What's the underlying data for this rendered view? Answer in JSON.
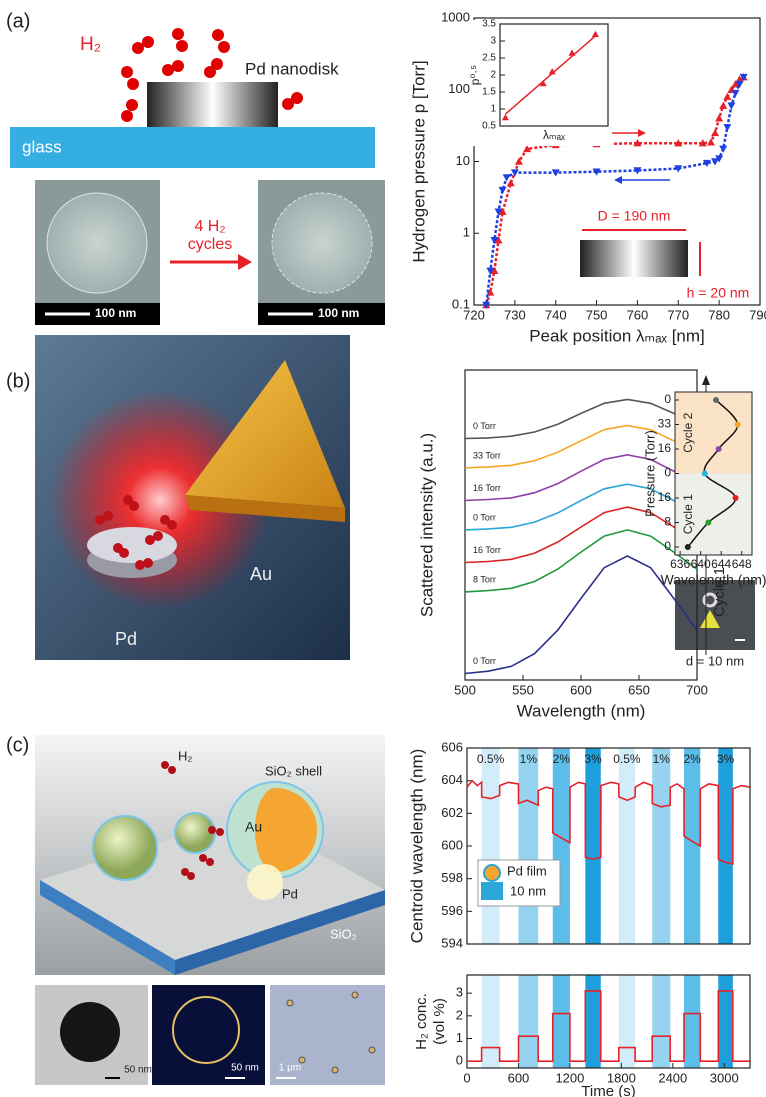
{
  "figure": {
    "panel_labels": [
      "(a)",
      "(b)",
      "(c)"
    ],
    "a": {
      "h2": "H₂",
      "disk": "Pd nanodisk",
      "glass": "glass",
      "scale1": "100 nm",
      "scale2": "100 nm",
      "cycles": [
        "4 H₂",
        "cycles"
      ]
    },
    "b": {
      "pd": "Pd",
      "au": "Au",
      "scale": "d = 10 nm"
    },
    "c": {
      "h2": "H₂",
      "shell": "SiO₂ shell",
      "au": "Au",
      "pd": "Pd",
      "sio2": "SiO₂",
      "s1": "50 nm",
      "s2": "50 nm",
      "s3": "1 μm"
    }
  },
  "chart_data": [
    {
      "type": "line",
      "xlabel": "Peak position λₘₐₓ [nm]",
      "ylabel": "Hydrogen pressure p [Torr]",
      "log_y": true,
      "xlim": [
        720,
        790
      ],
      "xticks": [
        720,
        730,
        740,
        750,
        760,
        770,
        780,
        790
      ],
      "ylim": [
        0.1,
        1000
      ],
      "yticks": [
        0.1,
        1,
        10,
        100,
        1000
      ],
      "annotations": [
        "D = 190 nm",
        "h = 20 nm"
      ],
      "series": [
        {
          "color": "#e8202a",
          "marker": "triangle-up",
          "x": [
            723,
            724,
            725,
            726,
            727,
            729,
            731,
            733,
            740,
            750,
            760,
            770,
            776,
            778,
            779,
            780,
            781,
            782,
            783,
            784,
            785,
            786
          ],
          "values": [
            0.1,
            0.15,
            0.3,
            0.8,
            2,
            5,
            10,
            15,
            17,
            17.5,
            18,
            18,
            18,
            18.5,
            25,
            40,
            60,
            80,
            100,
            120,
            140,
            150
          ]
        },
        {
          "color": "#1f3fe0",
          "marker": "triangle-down",
          "x": [
            786,
            785,
            784,
            783,
            782,
            781,
            780,
            779,
            777,
            770,
            760,
            750,
            740,
            730,
            728,
            727,
            726,
            725,
            724,
            723
          ],
          "values": [
            150,
            120,
            90,
            60,
            30,
            15,
            11,
            10,
            9.5,
            8,
            7.5,
            7.2,
            7,
            7,
            6,
            4,
            2,
            0.8,
            0.3,
            0.1
          ]
        }
      ]
    },
    {
      "type": "scatter",
      "xlabel": "λₘₐₓ",
      "ylabel": "p⁰·⁵",
      "xlim": [
        0,
        6
      ],
      "ylim": [
        0.5,
        3.5
      ],
      "yticks": [
        0.5,
        1,
        1.5,
        2,
        2.5,
        3,
        3.5
      ],
      "color": "#e8202a",
      "x": [
        0.3,
        2.4,
        2.9,
        4.0,
        5.3
      ],
      "values": [
        0.75,
        1.75,
        2.1,
        2.65,
        3.2
      ],
      "fit": {
        "x": [
          0.3,
          5.3
        ],
        "values": [
          0.85,
          3.15
        ]
      }
    },
    {
      "type": "line",
      "xlabel": "Wavelength (nm)",
      "ylabel": "Scattered intensity (a.u.)",
      "xlim": [
        500,
        700
      ],
      "xticks": [
        500,
        550,
        600,
        650,
        700
      ],
      "ylim": [
        0,
        9.5
      ],
      "cycle_labels": [
        "Cycle 2",
        "Cycle 1"
      ],
      "x": [
        500,
        520,
        540,
        560,
        580,
        600,
        620,
        640,
        660,
        680,
        700
      ],
      "series": [
        {
          "name": "0 Torr",
          "color": "#555555",
          "values": [
            7.4,
            7.42,
            7.47,
            7.6,
            7.84,
            8.17,
            8.48,
            8.6,
            8.48,
            8.17,
            7.84
          ]
        },
        {
          "name": "33 Torr",
          "color": "#f5a623",
          "values": [
            6.5,
            6.53,
            6.58,
            6.72,
            6.98,
            7.33,
            7.67,
            7.8,
            7.67,
            7.33,
            6.98
          ]
        },
        {
          "name": "16 Torr",
          "color": "#8e3fa8",
          "values": [
            5.5,
            5.53,
            5.58,
            5.74,
            6.02,
            6.4,
            6.76,
            6.9,
            6.76,
            6.4,
            6.02
          ]
        },
        {
          "name": "0 Torr",
          "color": "#2aa7d6",
          "values": [
            4.6,
            4.63,
            4.68,
            4.84,
            5.12,
            5.5,
            5.86,
            6.0,
            5.86,
            5.5,
            5.12
          ]
        },
        {
          "name": "16 Torr",
          "color": "#e02020",
          "values": [
            3.6,
            3.63,
            3.7,
            3.89,
            4.23,
            4.69,
            5.13,
            5.3,
            5.13,
            4.69,
            4.23
          ]
        },
        {
          "name": "8 Torr",
          "color": "#1f9a3a",
          "values": [
            2.7,
            2.74,
            2.81,
            3.02,
            3.4,
            3.92,
            4.41,
            4.6,
            4.41,
            3.92,
            3.4
          ]
        },
        {
          "name": "0 Torr",
          "color": "#2a2f8a",
          "values": [
            0.2,
            0.27,
            0.42,
            0.81,
            1.53,
            2.5,
            3.44,
            3.8,
            3.44,
            2.5,
            1.53
          ]
        }
      ]
    },
    {
      "type": "dotline",
      "xlabel": "Wavelength (nm)",
      "ylabel": "Pressure (Torr)",
      "xlim": [
        635,
        650
      ],
      "xticks": [
        636,
        640,
        644,
        648
      ],
      "categories": [
        "0",
        "8",
        "16",
        "0",
        "16",
        "33",
        "0"
      ],
      "values": [
        637.5,
        641.5,
        646.8,
        640.8,
        643.5,
        647.2,
        643.0
      ],
      "colors": [
        "#222222",
        "#2ca02c",
        "#e02020",
        "#29b6d6",
        "#8e44ad",
        "#f5a623",
        "#666666"
      ],
      "cycle_labels": [
        "Cycle 1",
        "Cycle 2"
      ]
    },
    {
      "type": "line",
      "ylabel": "Centroid wavelength (nm)",
      "xlim": [
        0,
        3300
      ],
      "ylim": [
        594,
        606
      ],
      "yticks": [
        594,
        596,
        598,
        600,
        602,
        604,
        606
      ],
      "legend": [
        "Pd film",
        "10 nm"
      ],
      "bands": [
        {
          "start": 170,
          "end": 380,
          "label": "0.5%",
          "color": "#d3ecf9"
        },
        {
          "start": 600,
          "end": 830,
          "label": "1%",
          "color": "#95d3f0"
        },
        {
          "start": 1000,
          "end": 1200,
          "label": "2%",
          "color": "#5cbde8"
        },
        {
          "start": 1380,
          "end": 1560,
          "label": "3%",
          "color": "#1e9fdc"
        },
        {
          "start": 1770,
          "end": 1960,
          "label": "0.5%",
          "color": "#d3ecf9"
        },
        {
          "start": 2160,
          "end": 2370,
          "label": "1%",
          "color": "#95d3f0"
        },
        {
          "start": 2530,
          "end": 2720,
          "label": "2%",
          "color": "#5cbde8"
        },
        {
          "start": 2930,
          "end": 3100,
          "label": "3%",
          "color": "#1e9fdc"
        }
      ],
      "series": [
        {
          "color": "#e8202a",
          "x": [
            0,
            60,
            120,
            170,
            171,
            280,
            380,
            381,
            480,
            600,
            601,
            700,
            830,
            831,
            920,
            1000,
            1001,
            1100,
            1200,
            1201,
            1300,
            1380,
            1381,
            1470,
            1560,
            1561,
            1680,
            1770,
            1771,
            1870,
            1960,
            1961,
            2060,
            2160,
            2161,
            2260,
            2370,
            2371,
            2450,
            2530,
            2531,
            2620,
            2720,
            2721,
            2820,
            2930,
            2931,
            3010,
            3100,
            3101,
            3200,
            3300
          ],
          "values": [
            603.6,
            604.0,
            603.7,
            603.9,
            603.0,
            602.9,
            603.1,
            603.7,
            603.9,
            603.8,
            602.6,
            602.8,
            602.5,
            603.4,
            603.6,
            603.5,
            600.8,
            600.5,
            600.2,
            603.6,
            603.9,
            603.8,
            599.3,
            599.2,
            599.3,
            603.7,
            603.9,
            603.8,
            603.0,
            602.8,
            603.0,
            603.6,
            603.9,
            603.7,
            602.6,
            602.4,
            602.5,
            603.6,
            603.8,
            603.5,
            600.6,
            600.3,
            600.0,
            603.5,
            603.8,
            603.7,
            599.2,
            599.0,
            598.9,
            603.5,
            603.7,
            603.6
          ]
        }
      ]
    },
    {
      "type": "line",
      "xlabel": "Time (s)",
      "ylabel": [
        "H₂ conc.",
        "(vol %)"
      ],
      "xlim": [
        0,
        3300
      ],
      "xticks": [
        0,
        600,
        1200,
        1800,
        2400,
        3000
      ],
      "ylim": [
        -0.3,
        3.8
      ],
      "yticks": [
        0,
        1,
        2,
        3
      ],
      "series": [
        {
          "color": "#e8202a",
          "x": [
            0,
            170,
            170,
            380,
            380,
            600,
            600,
            830,
            830,
            1000,
            1000,
            1200,
            1200,
            1380,
            1380,
            1560,
            1560,
            1770,
            1770,
            1960,
            1960,
            2160,
            2160,
            2370,
            2370,
            2530,
            2530,
            2720,
            2720,
            2930,
            2930,
            3100,
            3100,
            3300
          ],
          "values": [
            0,
            0,
            0.6,
            0.6,
            0,
            0,
            1.1,
            1.1,
            0,
            0,
            2.1,
            2.1,
            0,
            0,
            3.1,
            3.1,
            0,
            0,
            0.6,
            0.6,
            0,
            0,
            1.1,
            1.1,
            0,
            0,
            2.1,
            2.1,
            0,
            0,
            3.1,
            3.1,
            0,
            0
          ]
        }
      ]
    }
  ]
}
